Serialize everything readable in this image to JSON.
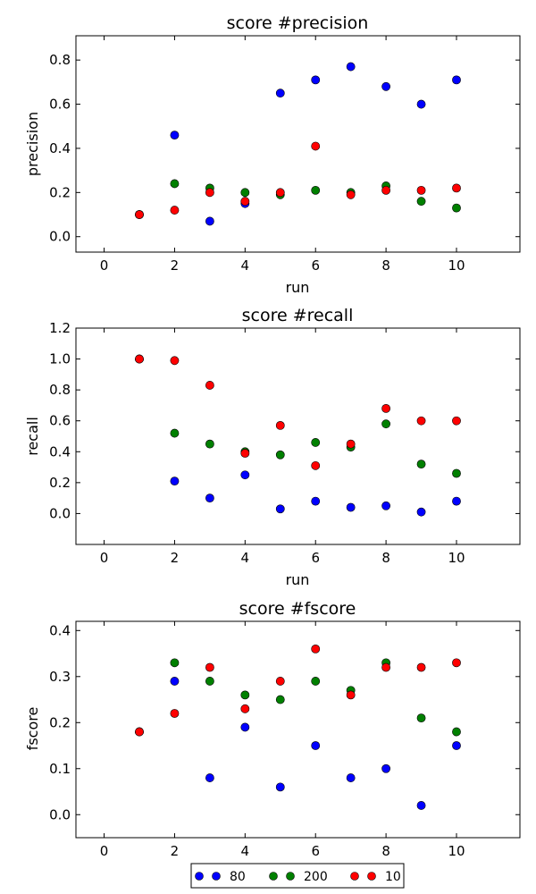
{
  "chart_data": [
    {
      "type": "scatter",
      "title": "score #precision",
      "xlabel": "run",
      "ylabel": "precision",
      "xlim": [
        -0.8,
        11.8
      ],
      "ylim": [
        -0.07,
        0.91
      ],
      "xticks": [
        0,
        2,
        4,
        6,
        8,
        10
      ],
      "yticks": [
        0.0,
        0.2,
        0.4,
        0.6,
        0.8
      ],
      "ytick_labels": [
        "0.0",
        "0.2",
        "0.4",
        "0.6",
        "0.8"
      ],
      "x": [
        1,
        2,
        3,
        4,
        5,
        6,
        7,
        8,
        9,
        10
      ],
      "series": [
        {
          "name": "80",
          "color": "#0000ff",
          "values": [
            0.1,
            0.46,
            0.07,
            0.15,
            0.65,
            0.71,
            0.77,
            0.68,
            0.6,
            0.71
          ]
        },
        {
          "name": "200",
          "color": "#008000",
          "values": [
            0.1,
            0.24,
            0.22,
            0.2,
            0.19,
            0.21,
            0.2,
            0.23,
            0.16,
            0.13
          ]
        },
        {
          "name": "10",
          "color": "#ff0000",
          "values": [
            0.1,
            0.12,
            0.2,
            0.16,
            0.2,
            0.41,
            0.19,
            0.21,
            0.21,
            0.22
          ]
        }
      ]
    },
    {
      "type": "scatter",
      "title": "score #recall",
      "xlabel": "run",
      "ylabel": "recall",
      "xlim": [
        -0.8,
        11.8
      ],
      "ylim": [
        -0.2,
        1.2
      ],
      "xticks": [
        0,
        2,
        4,
        6,
        8,
        10
      ],
      "yticks": [
        0.0,
        0.2,
        0.4,
        0.6,
        0.8,
        1.0,
        1.2
      ],
      "ytick_labels": [
        "0.0",
        "0.2",
        "0.4",
        "0.6",
        "0.8",
        "1.0",
        "1.2"
      ],
      "x": [
        1,
        2,
        3,
        4,
        5,
        6,
        7,
        8,
        9,
        10
      ],
      "series": [
        {
          "name": "80",
          "color": "#0000ff",
          "values": [
            1.0,
            0.21,
            0.1,
            0.25,
            0.03,
            0.08,
            0.04,
            0.05,
            0.01,
            0.08
          ]
        },
        {
          "name": "200",
          "color": "#008000",
          "values": [
            1.0,
            0.52,
            0.45,
            0.4,
            0.38,
            0.46,
            0.43,
            0.58,
            0.32,
            0.26
          ]
        },
        {
          "name": "10",
          "color": "#ff0000",
          "values": [
            1.0,
            0.99,
            0.83,
            0.39,
            0.57,
            0.31,
            0.45,
            0.68,
            0.6,
            0.6
          ]
        }
      ]
    },
    {
      "type": "scatter",
      "title": "score #fscore",
      "xlabel": "",
      "ylabel": "fscore",
      "xlim": [
        -0.8,
        11.8
      ],
      "ylim": [
        -0.05,
        0.42
      ],
      "xticks": [
        0,
        2,
        4,
        6,
        8,
        10
      ],
      "yticks": [
        0.0,
        0.1,
        0.2,
        0.3,
        0.4
      ],
      "ytick_labels": [
        "0.0",
        "0.1",
        "0.2",
        "0.3",
        "0.4"
      ],
      "x": [
        1,
        2,
        3,
        4,
        5,
        6,
        7,
        8,
        9,
        10
      ],
      "series": [
        {
          "name": "80",
          "color": "#0000ff",
          "values": [
            0.18,
            0.29,
            0.08,
            0.19,
            0.06,
            0.15,
            0.08,
            0.1,
            0.02,
            0.15
          ]
        },
        {
          "name": "200",
          "color": "#008000",
          "values": [
            0.18,
            0.33,
            0.29,
            0.26,
            0.25,
            0.29,
            0.27,
            0.33,
            0.21,
            0.18
          ]
        },
        {
          "name": "10",
          "color": "#ff0000",
          "values": [
            0.18,
            0.22,
            0.32,
            0.23,
            0.29,
            0.36,
            0.26,
            0.32,
            0.32,
            0.33
          ]
        }
      ]
    }
  ],
  "legend": {
    "placement": "bottom-center",
    "entries": [
      {
        "label": "80",
        "color": "#0000ff"
      },
      {
        "label": "200",
        "color": "#008000"
      },
      {
        "label": "10",
        "color": "#ff0000"
      }
    ]
  }
}
